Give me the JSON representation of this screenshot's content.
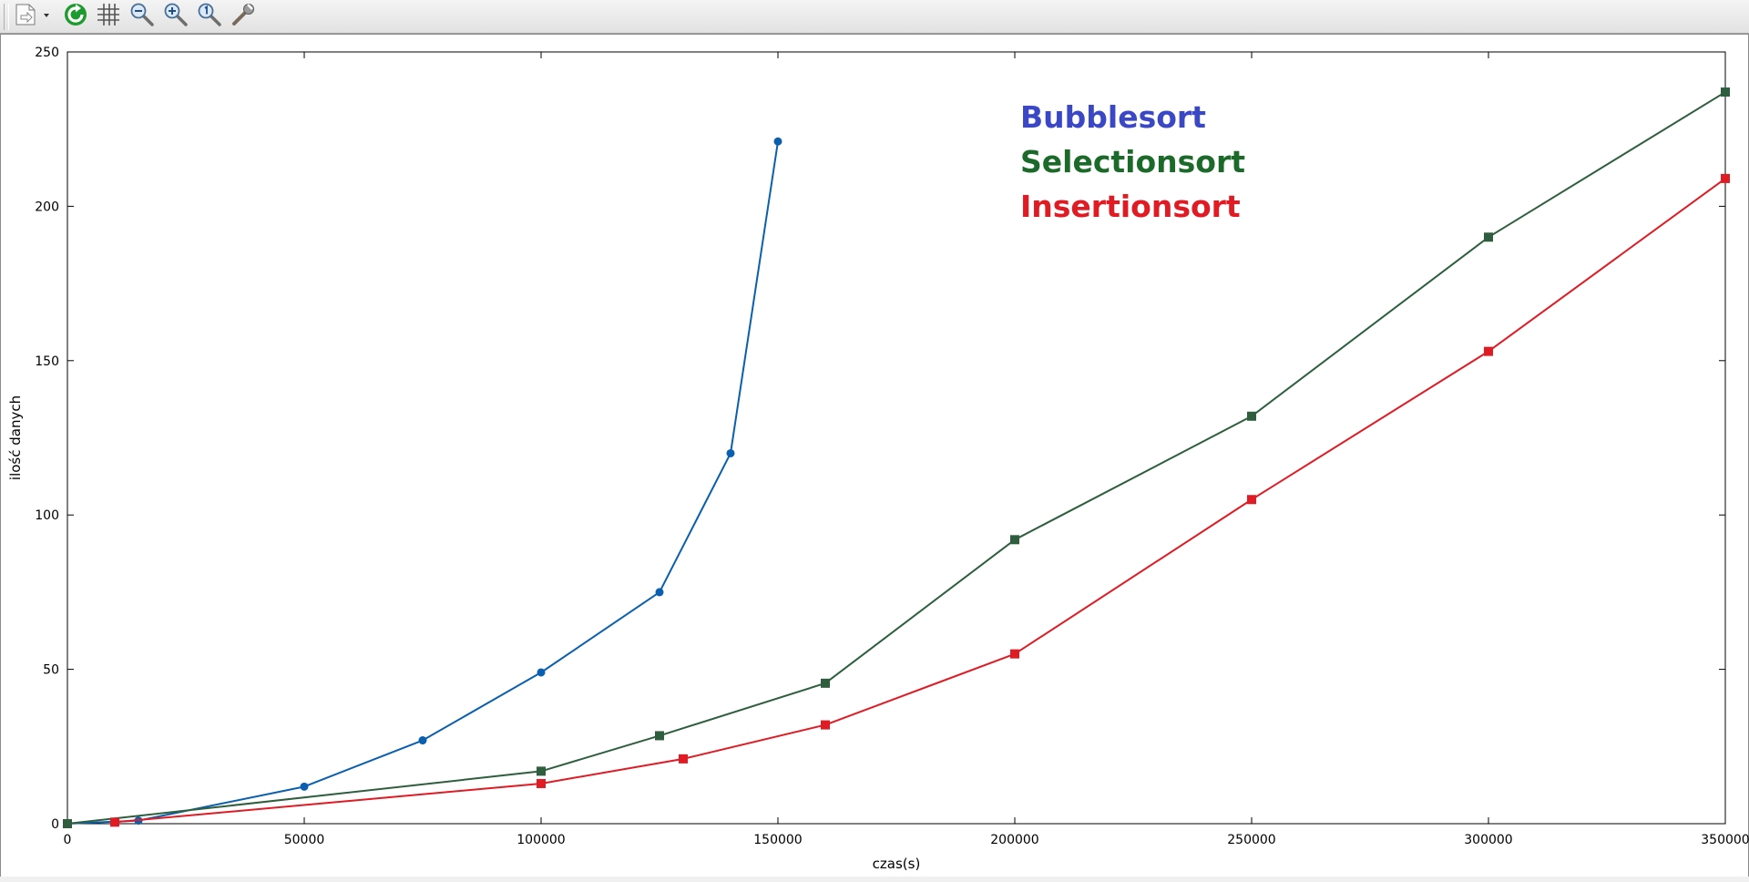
{
  "toolbar": {
    "buttons": [
      {
        "name": "export-icon"
      },
      {
        "name": "replot-icon"
      },
      {
        "name": "grid-icon"
      },
      {
        "name": "zoom-out-icon"
      },
      {
        "name": "zoom-in-icon"
      },
      {
        "name": "zoom-reset-icon"
      },
      {
        "name": "settings-wrench-icon"
      }
    ]
  },
  "chart_data": {
    "type": "line",
    "title": "",
    "xlabel": "czas(s)",
    "ylabel": "ilość danych",
    "xlim": [
      0,
      350000
    ],
    "ylim": [
      0,
      250
    ],
    "xticks": [
      0,
      50000,
      100000,
      150000,
      200000,
      250000,
      300000,
      350000
    ],
    "xtick_labels": [
      "0",
      "50000",
      "100000",
      "150000",
      "200000",
      "250000",
      "300000",
      "350000"
    ],
    "yticks": [
      0,
      50,
      100,
      150,
      200,
      250
    ],
    "ytick_labels": [
      "0",
      "50",
      "100",
      "150",
      "200",
      "250"
    ],
    "grid": false,
    "legend_placement": "top-center",
    "series": [
      {
        "name": "Bubblesort",
        "color": "#0a5fae",
        "label_color": "#3b48c6",
        "marker": "circle",
        "x": [
          0,
          15000,
          50000,
          75000,
          100000,
          125000,
          140000,
          150000
        ],
        "y": [
          0,
          1,
          12,
          27,
          49,
          75,
          120,
          221
        ]
      },
      {
        "name": "Selectionsort",
        "color": "#2e5e3e",
        "label_color": "#1b6a2a",
        "marker": "square",
        "x": [
          0,
          100000,
          125000,
          160000,
          200000,
          250000,
          300000,
          350000
        ],
        "y": [
          0,
          17,
          28.5,
          45.5,
          92,
          132,
          190,
          237
        ]
      },
      {
        "name": "Insertionsort",
        "color": "#e01b24",
        "label_color": "#e01b24",
        "marker": "square",
        "x": [
          10000,
          100000,
          130000,
          160000,
          200000,
          250000,
          300000,
          350000
        ],
        "y": [
          0.5,
          13,
          21,
          32,
          55,
          105,
          153,
          209
        ]
      }
    ]
  }
}
